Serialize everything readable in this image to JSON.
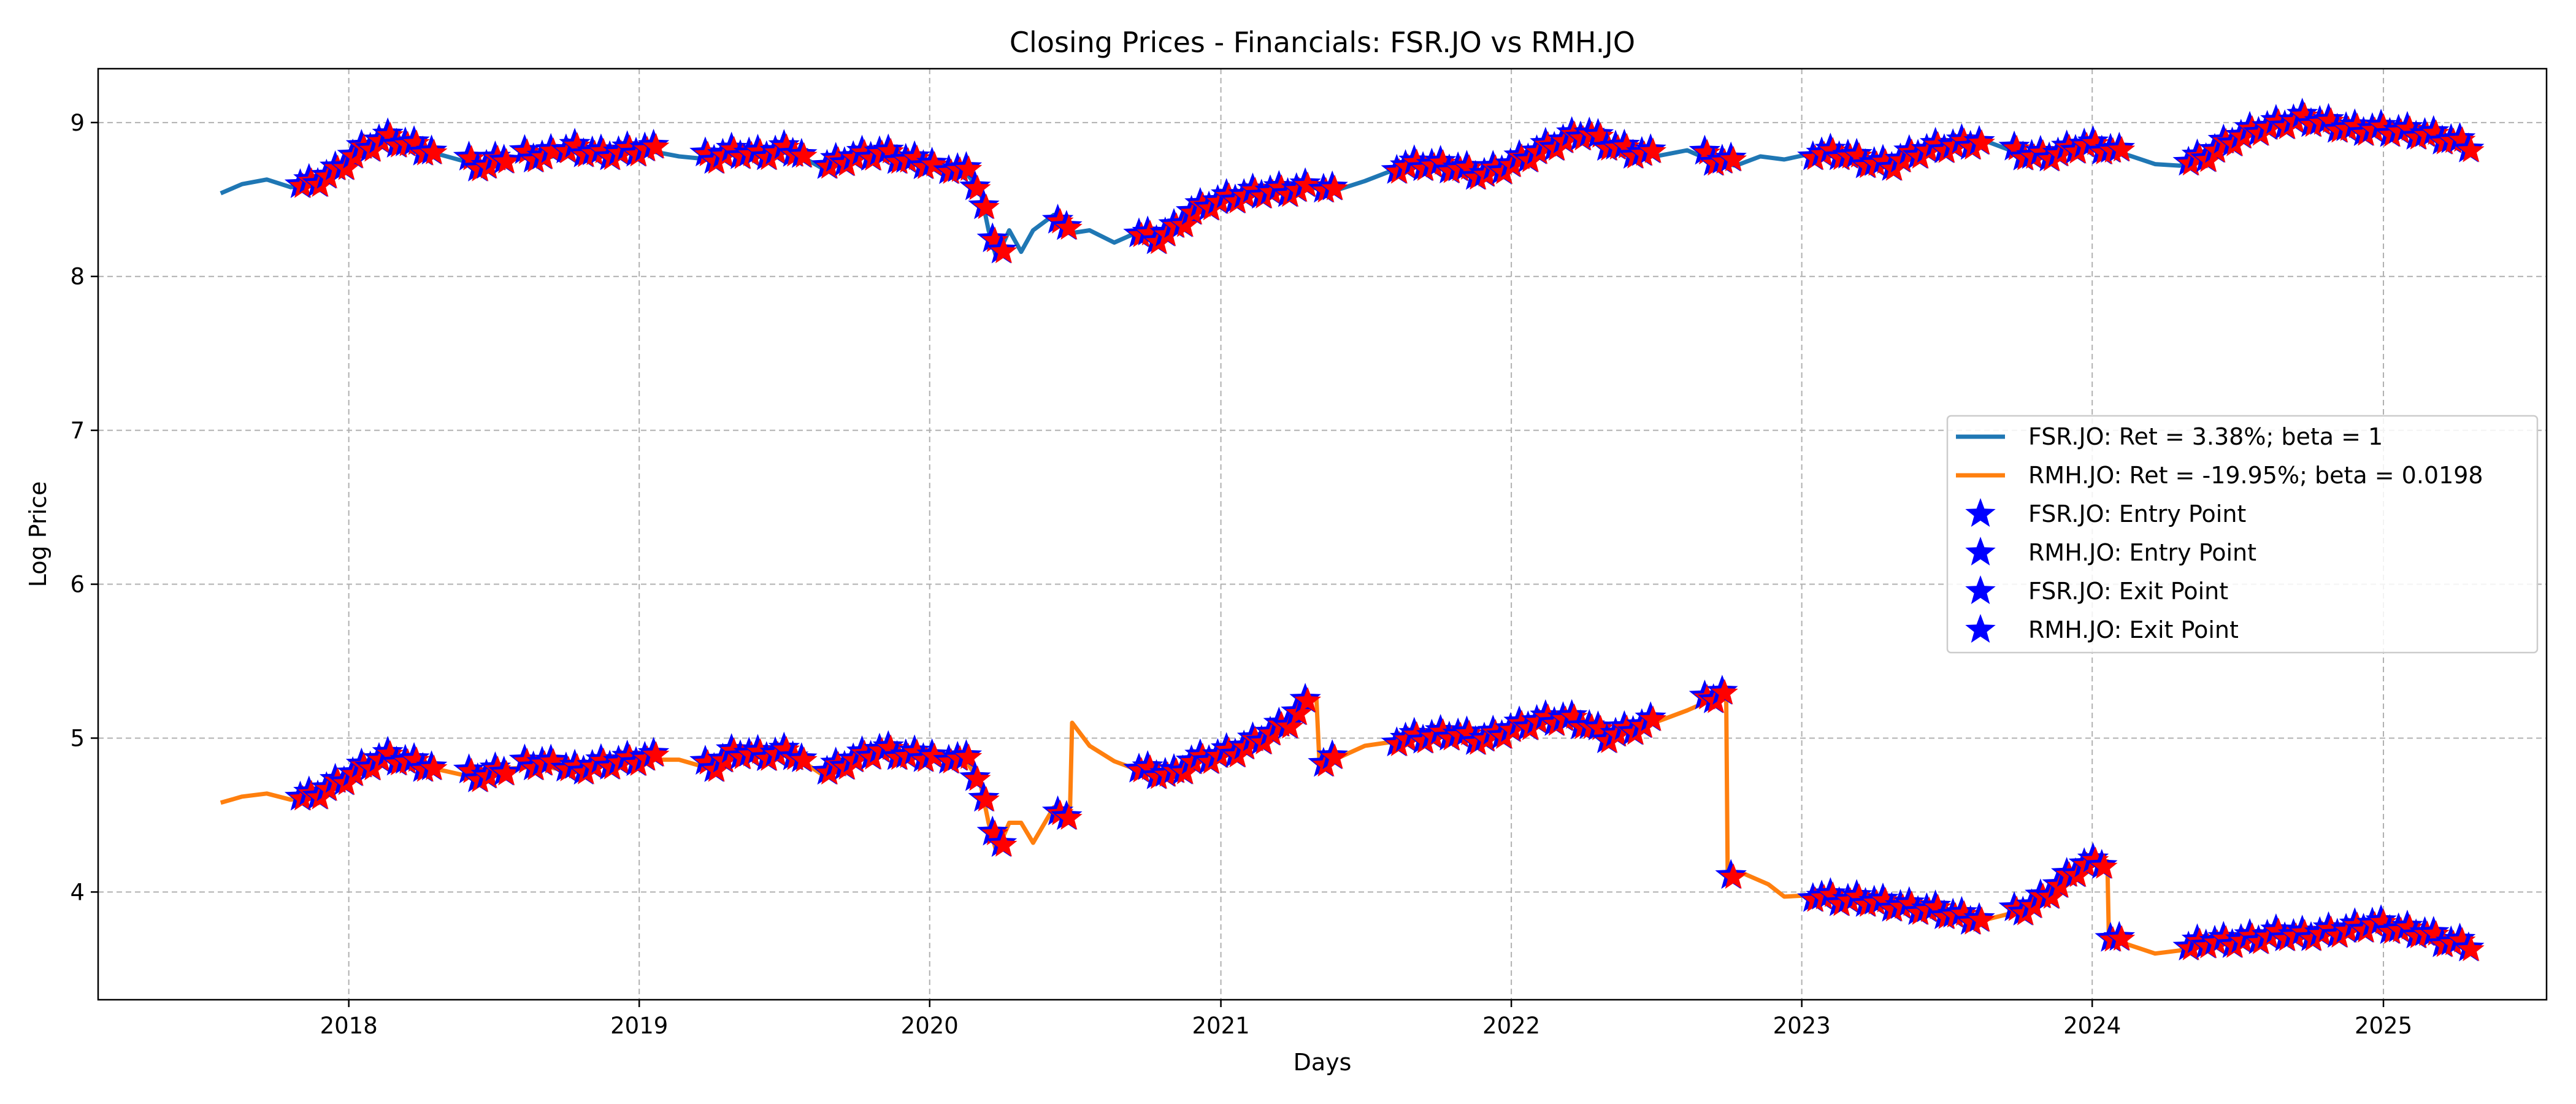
{
  "chart_data": {
    "type": "line",
    "title": "Closing Prices - Financials: FSR.JO vs RMH.JO",
    "xlabel": "Days",
    "ylabel": "Log Price",
    "xlim": [
      "2017-02-20",
      "2025-07-25"
    ],
    "ylim": [
      3.3,
      9.35
    ],
    "x_ticks": [
      "2018",
      "2019",
      "2020",
      "2021",
      "2022",
      "2023",
      "2024",
      "2025"
    ],
    "y_ticks": [
      4,
      5,
      6,
      7,
      8,
      9
    ],
    "grid": true,
    "legend_position": "center-right",
    "series": [
      {
        "name": "FSR.JO: Ret = 3.38%; beta = 1",
        "kind": "line",
        "color": "#1f77b4",
        "points": [
          [
            "2017-07-24",
            8.54
          ],
          [
            "2017-08-20",
            8.6
          ],
          [
            "2017-09-20",
            8.63
          ],
          [
            "2017-10-20",
            8.58
          ],
          [
            "2017-11-15",
            8.6
          ],
          [
            "2017-12-15",
            8.68
          ],
          [
            "2018-01-10",
            8.8
          ],
          [
            "2018-02-15",
            8.9
          ],
          [
            "2018-03-20",
            8.85
          ],
          [
            "2018-04-20",
            8.8
          ],
          [
            "2018-05-25",
            8.75
          ],
          [
            "2018-06-20",
            8.7
          ],
          [
            "2018-07-20",
            8.78
          ],
          [
            "2018-09-01",
            8.76
          ],
          [
            "2018-10-10",
            8.82
          ],
          [
            "2018-11-15",
            8.78
          ],
          [
            "2018-12-15",
            8.8
          ],
          [
            "2019-01-10",
            8.82
          ],
          [
            "2019-02-20",
            8.78
          ],
          [
            "2019-04-01",
            8.76
          ],
          [
            "2019-05-01",
            8.8
          ],
          [
            "2019-06-01",
            8.78
          ],
          [
            "2019-07-10",
            8.82
          ],
          [
            "2019-08-20",
            8.7
          ],
          [
            "2019-09-20",
            8.76
          ],
          [
            "2019-11-01",
            8.8
          ],
          [
            "2019-12-01",
            8.75
          ],
          [
            "2020-01-10",
            8.72
          ],
          [
            "2020-02-15",
            8.68
          ],
          [
            "2020-03-05",
            8.55
          ],
          [
            "2020-03-15",
            8.3
          ],
          [
            "2020-03-25",
            8.12
          ],
          [
            "2020-04-10",
            8.3
          ],
          [
            "2020-04-25",
            8.16
          ],
          [
            "2020-05-10",
            8.3
          ],
          [
            "2020-06-05",
            8.4
          ],
          [
            "2020-06-25",
            8.28
          ],
          [
            "2020-07-20",
            8.3
          ],
          [
            "2020-08-20",
            8.22
          ],
          [
            "2020-09-15",
            8.28
          ],
          [
            "2020-10-10",
            8.25
          ],
          [
            "2020-11-01",
            8.3
          ],
          [
            "2020-11-25",
            8.42
          ],
          [
            "2020-12-20",
            8.48
          ],
          [
            "2021-01-20",
            8.52
          ],
          [
            "2021-02-20",
            8.55
          ],
          [
            "2021-03-25",
            8.56
          ],
          [
            "2021-04-25",
            8.58
          ],
          [
            "2021-05-20",
            8.55
          ],
          [
            "2021-07-01",
            8.62
          ],
          [
            "2021-08-10",
            8.7
          ],
          [
            "2021-09-15",
            8.72
          ],
          [
            "2021-10-20",
            8.7
          ],
          [
            "2021-11-25",
            8.65
          ],
          [
            "2022-01-01",
            8.72
          ],
          [
            "2022-02-01",
            8.8
          ],
          [
            "2022-03-10",
            8.88
          ],
          [
            "2022-04-05",
            8.93
          ],
          [
            "2022-05-01",
            8.85
          ],
          [
            "2022-06-01",
            8.8
          ],
          [
            "2022-07-01",
            8.78
          ],
          [
            "2022-08-10",
            8.82
          ],
          [
            "2022-09-10",
            8.75
          ],
          [
            "2022-10-10",
            8.72
          ],
          [
            "2022-11-10",
            8.78
          ],
          [
            "2022-12-10",
            8.76
          ],
          [
            "2023-01-15",
            8.8
          ],
          [
            "2023-02-20",
            8.8
          ],
          [
            "2023-03-20",
            8.75
          ],
          [
            "2023-04-20",
            8.72
          ],
          [
            "2023-05-20",
            8.8
          ],
          [
            "2023-06-20",
            8.84
          ],
          [
            "2023-07-20",
            8.86
          ],
          [
            "2023-08-20",
            8.88
          ],
          [
            "2023-09-20",
            8.82
          ],
          [
            "2023-10-20",
            8.78
          ],
          [
            "2023-11-20",
            8.8
          ],
          [
            "2023-12-20",
            8.86
          ],
          [
            "2024-01-20",
            8.83
          ],
          [
            "2024-02-20",
            8.78
          ],
          [
            "2024-03-20",
            8.73
          ],
          [
            "2024-04-20",
            8.72
          ],
          [
            "2024-05-20",
            8.78
          ],
          [
            "2024-06-20",
            8.88
          ],
          [
            "2024-07-20",
            8.95
          ],
          [
            "2024-08-20",
            8.99
          ],
          [
            "2024-09-20",
            9.03
          ],
          [
            "2024-10-20",
            9.0
          ],
          [
            "2024-11-20",
            8.96
          ],
          [
            "2024-12-20",
            8.96
          ],
          [
            "2025-01-20",
            8.95
          ],
          [
            "2025-02-20",
            8.93
          ],
          [
            "2025-03-20",
            8.9
          ],
          [
            "2025-04-20",
            8.85
          ]
        ]
      },
      {
        "name": "RMH.JO: Ret = -19.95%; beta = 0.0198",
        "kind": "line",
        "color": "#ff7f0e",
        "points": [
          [
            "2017-07-24",
            4.58
          ],
          [
            "2017-08-20",
            4.62
          ],
          [
            "2017-09-20",
            4.64
          ],
          [
            "2017-10-20",
            4.6
          ],
          [
            "2017-11-15",
            4.62
          ],
          [
            "2017-12-15",
            4.7
          ],
          [
            "2018-01-10",
            4.78
          ],
          [
            "2018-02-15",
            4.88
          ],
          [
            "2018-03-20",
            4.84
          ],
          [
            "2018-04-20",
            4.8
          ],
          [
            "2018-05-25",
            4.76
          ],
          [
            "2018-06-20",
            4.74
          ],
          [
            "2018-07-20",
            4.8
          ],
          [
            "2018-09-01",
            4.82
          ],
          [
            "2018-10-10",
            4.78
          ],
          [
            "2018-11-15",
            4.82
          ],
          [
            "2018-12-15",
            4.84
          ],
          [
            "2019-01-10",
            4.86
          ],
          [
            "2019-02-20",
            4.86
          ],
          [
            "2019-04-01",
            4.8
          ],
          [
            "2019-05-01",
            4.9
          ],
          [
            "2019-06-01",
            4.88
          ],
          [
            "2019-07-10",
            4.9
          ],
          [
            "2019-08-20",
            4.76
          ],
          [
            "2019-09-20",
            4.84
          ],
          [
            "2019-11-01",
            4.92
          ],
          [
            "2019-12-01",
            4.88
          ],
          [
            "2020-01-10",
            4.88
          ],
          [
            "2020-02-15",
            4.86
          ],
          [
            "2020-03-05",
            4.7
          ],
          [
            "2020-03-15",
            4.45
          ],
          [
            "2020-03-25",
            4.26
          ],
          [
            "2020-04-10",
            4.45
          ],
          [
            "2020-04-25",
            4.45
          ],
          [
            "2020-05-10",
            4.32
          ],
          [
            "2020-06-05",
            4.55
          ],
          [
            "2020-06-25",
            4.45
          ],
          [
            "2020-06-28",
            5.1
          ],
          [
            "2020-07-20",
            4.95
          ],
          [
            "2020-08-20",
            4.85
          ],
          [
            "2020-09-15",
            4.8
          ],
          [
            "2020-10-10",
            4.78
          ],
          [
            "2020-11-01",
            4.76
          ],
          [
            "2020-11-25",
            4.85
          ],
          [
            "2020-12-20",
            4.88
          ],
          [
            "2021-01-20",
            4.92
          ],
          [
            "2021-02-20",
            5.0
          ],
          [
            "2021-03-25",
            5.1
          ],
          [
            "2021-04-15",
            5.22
          ],
          [
            "2021-05-01",
            5.26
          ],
          [
            "2021-05-05",
            4.82
          ],
          [
            "2021-06-01",
            4.88
          ],
          [
            "2021-07-01",
            4.95
          ],
          [
            "2021-08-10",
            4.98
          ],
          [
            "2021-09-15",
            5.0
          ],
          [
            "2021-10-20",
            5.02
          ],
          [
            "2021-11-25",
            4.98
          ],
          [
            "2022-01-01",
            5.05
          ],
          [
            "2022-02-01",
            5.1
          ],
          [
            "2022-03-10",
            5.12
          ],
          [
            "2022-04-05",
            5.08
          ],
          [
            "2022-05-01",
            5.0
          ],
          [
            "2022-06-01",
            5.05
          ],
          [
            "2022-07-10",
            5.12
          ],
          [
            "2022-08-10",
            5.18
          ],
          [
            "2022-09-10",
            5.25
          ],
          [
            "2022-09-28",
            5.3
          ],
          [
            "2022-09-30",
            4.05
          ],
          [
            "2022-10-20",
            4.12
          ],
          [
            "2022-11-20",
            4.05
          ],
          [
            "2022-12-10",
            3.97
          ],
          [
            "2023-01-15",
            3.98
          ],
          [
            "2023-02-20",
            3.95
          ],
          [
            "2023-03-20",
            3.95
          ],
          [
            "2023-04-20",
            3.92
          ],
          [
            "2023-05-20",
            3.9
          ],
          [
            "2023-06-20",
            3.88
          ],
          [
            "2023-07-20",
            3.84
          ],
          [
            "2023-08-20",
            3.82
          ],
          [
            "2023-09-20",
            3.86
          ],
          [
            "2023-10-20",
            3.92
          ],
          [
            "2023-11-20",
            4.05
          ],
          [
            "2023-12-20",
            4.18
          ],
          [
            "2024-01-20",
            4.2
          ],
          [
            "2024-01-22",
            3.7
          ],
          [
            "2024-02-20",
            3.65
          ],
          [
            "2024-03-20",
            3.6
          ],
          [
            "2024-04-20",
            3.62
          ],
          [
            "2024-05-20",
            3.68
          ],
          [
            "2024-06-20",
            3.68
          ],
          [
            "2024-07-20",
            3.7
          ],
          [
            "2024-08-20",
            3.73
          ],
          [
            "2024-09-20",
            3.72
          ],
          [
            "2024-10-20",
            3.74
          ],
          [
            "2024-11-20",
            3.76
          ],
          [
            "2024-12-20",
            3.8
          ],
          [
            "2025-01-20",
            3.76
          ],
          [
            "2025-02-20",
            3.74
          ],
          [
            "2025-03-20",
            3.68
          ],
          [
            "2025-04-20",
            3.66
          ]
        ]
      },
      {
        "name": "FSR.JO: Entry Point",
        "kind": "marker",
        "marker": "star",
        "color": "#0000ff",
        "on_series": 0
      },
      {
        "name": "RMH.JO: Entry Point",
        "kind": "marker",
        "marker": "star",
        "color": "#0000ff",
        "on_series": 1
      },
      {
        "name": "FSR.JO: Exit Point",
        "kind": "marker",
        "marker": "star",
        "color": "#0000ff",
        "on_series": 0
      },
      {
        "name": "RMH.JO: Exit Point",
        "kind": "marker",
        "marker": "star",
        "color": "#0000ff",
        "on_series": 1
      }
    ],
    "trade_windows": [
      [
        "2017-11-01",
        "2018-04-15"
      ],
      [
        "2018-06-01",
        "2018-07-25"
      ],
      [
        "2018-08-10",
        "2018-09-20"
      ],
      [
        "2018-10-01",
        "2019-01-20"
      ],
      [
        "2019-03-25",
        "2019-07-25"
      ],
      [
        "2019-08-25",
        "2020-01-05"
      ],
      [
        "2020-01-25",
        "2020-04-05"
      ],
      [
        "2020-06-10",
        "2020-06-25"
      ],
      [
        "2020-09-20",
        "2021-04-25"
      ],
      [
        "2021-05-10",
        "2021-05-25"
      ],
      [
        "2021-08-10",
        "2022-07-01"
      ],
      [
        "2022-09-01",
        "2022-10-05"
      ],
      [
        "2023-01-15",
        "2023-08-15"
      ],
      [
        "2023-09-25",
        "2024-02-10"
      ],
      [
        "2024-05-01",
        "2025-04-20"
      ]
    ],
    "overlay_marker": {
      "marker": "star",
      "color": "#ff0000",
      "edge_color": "#0000ff"
    }
  }
}
